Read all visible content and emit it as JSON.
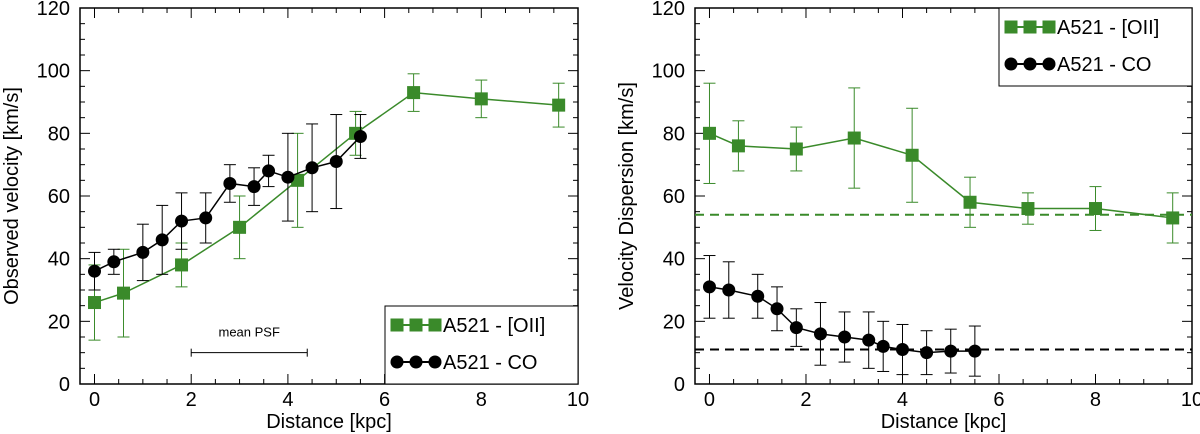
{
  "colors": {
    "oii": "#3a8a2a",
    "co": "#000000"
  },
  "chart_data": [
    {
      "type": "line",
      "xlabel": "Distance [kpc]",
      "ylabel": "Observed velocity [km/s]",
      "xlim": [
        -0.3,
        10
      ],
      "ylim": [
        0,
        120
      ],
      "xticks": [
        0,
        2,
        4,
        6,
        8,
        10
      ],
      "yticks": [
        0,
        20,
        40,
        60,
        80,
        100,
        120
      ],
      "legend_position": "bottom-right",
      "annotation": {
        "text": "mean PSF",
        "x_range": [
          2.0,
          4.4
        ],
        "y": 10
      },
      "series": [
        {
          "name": "A521 - [OII]",
          "marker": "square",
          "color": "#3a8a2a",
          "x": [
            0,
            0.6,
            1.8,
            3.0,
            4.2,
            5.4,
            6.6,
            8.0,
            9.6
          ],
          "y": [
            26,
            29,
            38,
            50,
            65,
            80,
            93,
            91,
            89
          ],
          "err": [
            12,
            14,
            7,
            10,
            15,
            7,
            6,
            6,
            7
          ]
        },
        {
          "name": "A521 - CO",
          "marker": "circle",
          "color": "#000000",
          "x": [
            0,
            0.4,
            1.0,
            1.4,
            1.8,
            2.3,
            2.8,
            3.3,
            3.6,
            4.0,
            4.5,
            5.0,
            5.5
          ],
          "y": [
            36,
            39,
            42,
            46,
            52,
            53,
            64,
            63,
            68,
            66,
            69,
            71,
            79
          ],
          "err": [
            6,
            4,
            9,
            11,
            9,
            8,
            6,
            6,
            5,
            14,
            14,
            15,
            7
          ]
        }
      ]
    },
    {
      "type": "line",
      "xlabel": "Distance [kpc]",
      "ylabel": "Velocity Dispersion [km/s]",
      "xlim": [
        -0.3,
        10
      ],
      "ylim": [
        0,
        120
      ],
      "xticks": [
        0,
        2,
        4,
        6,
        8,
        10
      ],
      "yticks": [
        0,
        20,
        40,
        60,
        80,
        100,
        120
      ],
      "legend_position": "top-right",
      "reference_lines": [
        {
          "y": 54,
          "color": "#3a8a2a"
        },
        {
          "y": 11,
          "color": "#000000"
        }
      ],
      "series": [
        {
          "name": "A521 - [OII]",
          "marker": "square",
          "color": "#3a8a2a",
          "x": [
            0,
            0.6,
            1.8,
            3.0,
            4.2,
            5.4,
            6.6,
            8.0,
            9.6
          ],
          "y": [
            80,
            76,
            75,
            78.5,
            73,
            58,
            56,
            56,
            53
          ],
          "err": [
            16,
            8,
            7,
            16,
            15,
            8,
            5,
            7,
            8
          ]
        },
        {
          "name": "A521 - CO",
          "marker": "circle",
          "color": "#000000",
          "x": [
            0,
            0.4,
            1.0,
            1.4,
            1.8,
            2.3,
            2.8,
            3.3,
            3.6,
            4.0,
            4.5,
            5.0,
            5.5
          ],
          "y": [
            31,
            30,
            28,
            24,
            18,
            16,
            15,
            14,
            12,
            11,
            10,
            10.5,
            10.5
          ],
          "err": [
            10,
            9,
            7,
            7,
            6,
            10,
            8,
            9,
            8,
            8,
            7,
            7,
            8
          ]
        }
      ]
    }
  ]
}
